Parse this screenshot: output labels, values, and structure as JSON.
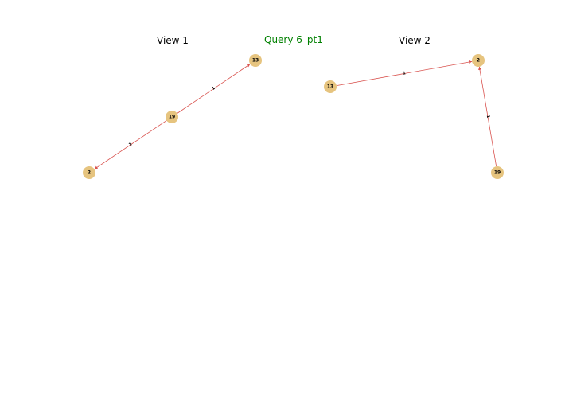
{
  "title": "Query 6_pt1",
  "colors": {
    "title": "#008000",
    "node": "#e6c47f",
    "edge": "#d9534f"
  },
  "views": [
    {
      "name": "View 1",
      "nodes": [
        "13",
        "19",
        "2"
      ],
      "edges": [
        {
          "from": "19",
          "to": "13",
          "label": "1"
        },
        {
          "from": "19",
          "to": "2",
          "label": "1"
        }
      ]
    },
    {
      "name": "View 2",
      "nodes": [
        "13",
        "2",
        "19"
      ],
      "edges": [
        {
          "from": "13",
          "to": "2",
          "label": "1"
        },
        {
          "from": "19",
          "to": "2",
          "label": "1"
        }
      ]
    }
  ]
}
